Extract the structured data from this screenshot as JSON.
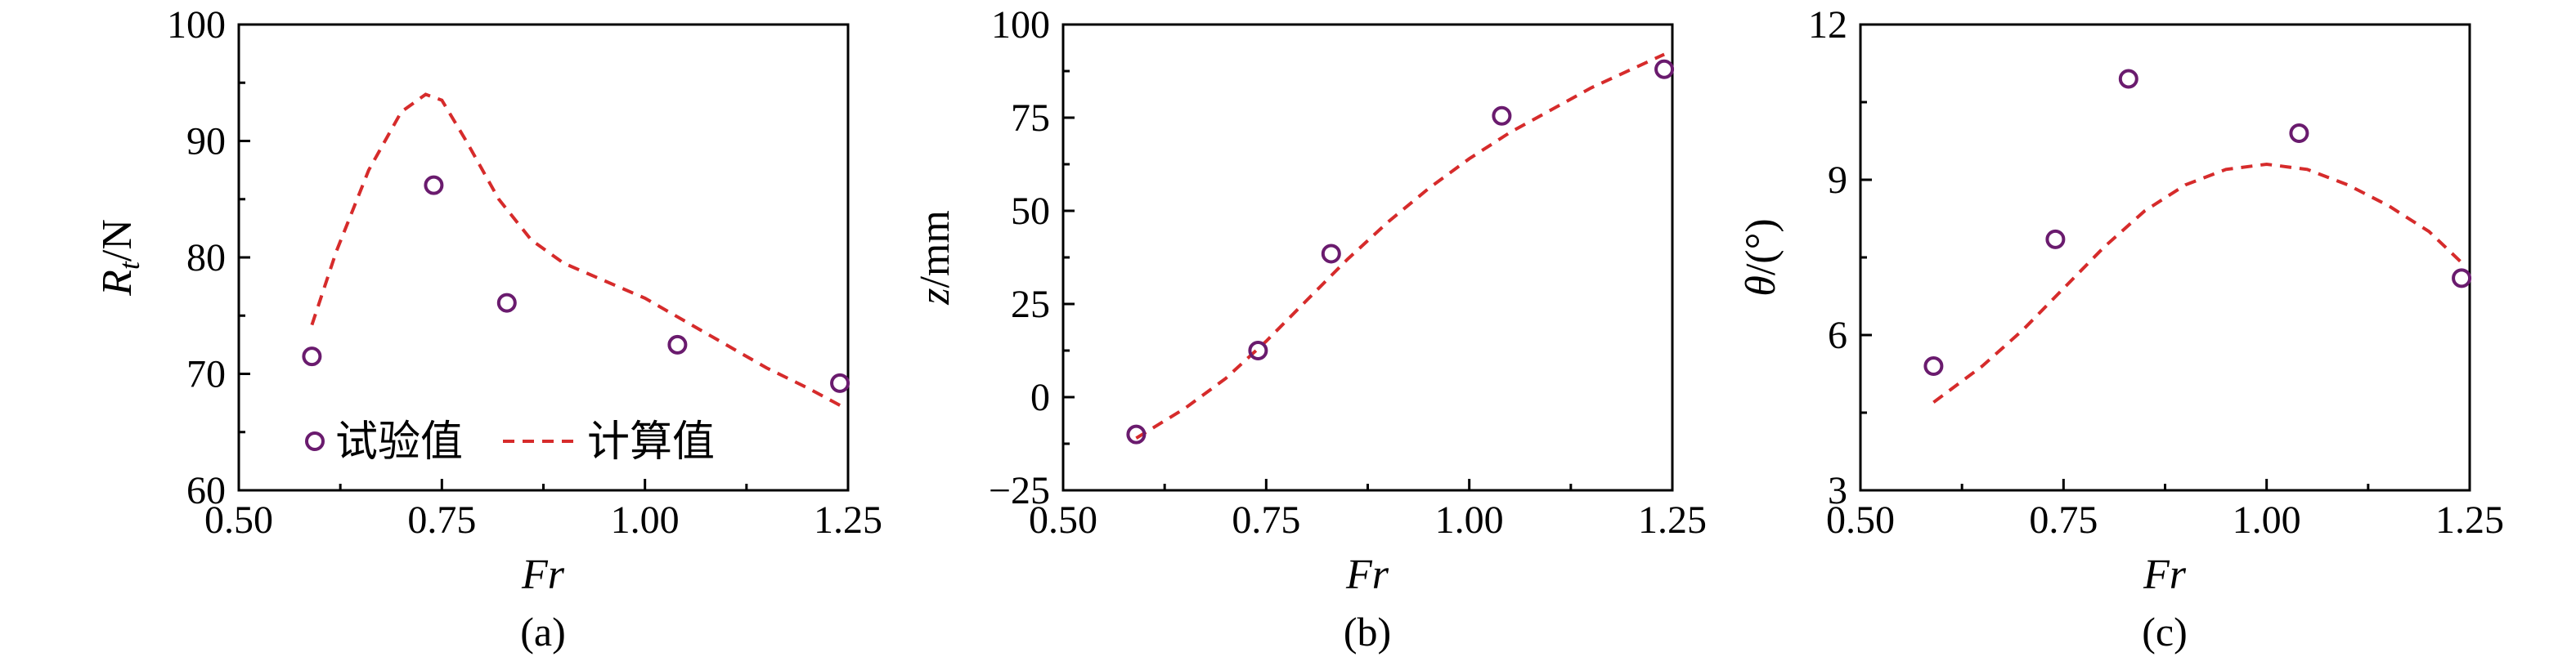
{
  "chart_data": [
    {
      "type": "line",
      "caption": "(a)",
      "xlabel": "Fr",
      "ylabel_main": "R",
      "ylabel_sub": "t",
      "ylabel_unit": "/N",
      "xlim": [
        0.5,
        1.25
      ],
      "ylim": [
        60,
        100
      ],
      "xticks": [
        0.5,
        0.75,
        1.0,
        1.25
      ],
      "xticklabels": [
        "0.50",
        "0.75",
        "1.00",
        "1.25"
      ],
      "yticks": [
        60,
        70,
        80,
        90,
        100
      ],
      "yticklabels": [
        "60",
        "70",
        "80",
        "90",
        "100"
      ],
      "legend": {
        "placement": "bottom",
        "entries": [
          "试验值",
          "计算值"
        ]
      },
      "series": [
        {
          "name": "试验值",
          "kind": "scatter",
          "x": [
            0.59,
            0.74,
            0.83,
            1.04,
            1.24
          ],
          "y": [
            71.5,
            86.2,
            76.1,
            72.5,
            69.2
          ]
        },
        {
          "name": "计算值",
          "kind": "line",
          "x": [
            0.59,
            0.62,
            0.66,
            0.7,
            0.73,
            0.75,
            0.78,
            0.82,
            0.86,
            0.9,
            0.95,
            1.0,
            1.05,
            1.1,
            1.15,
            1.2,
            1.24
          ],
          "y": [
            74.2,
            80.5,
            87.5,
            92.5,
            94.0,
            93.5,
            90.0,
            85.0,
            81.5,
            79.5,
            78.0,
            76.5,
            74.5,
            72.5,
            70.5,
            68.8,
            67.3
          ]
        }
      ]
    },
    {
      "type": "line",
      "caption": "(b)",
      "xlabel": "Fr",
      "ylabel_main": "z",
      "ylabel_sub": "",
      "ylabel_unit": "/mm",
      "xlim": [
        0.5,
        1.25
      ],
      "ylim": [
        -25,
        100
      ],
      "xticks": [
        0.5,
        0.75,
        1.0,
        1.25
      ],
      "xticklabels": [
        "0.50",
        "0.75",
        "1.00",
        "1.25"
      ],
      "yticks": [
        -25,
        0,
        25,
        50,
        75,
        100
      ],
      "yticklabels": [
        "−25",
        "0",
        "25",
        "50",
        "75",
        "100"
      ],
      "series": [
        {
          "name": "试验值",
          "kind": "scatter",
          "x": [
            0.59,
            0.74,
            0.83,
            1.04,
            1.24
          ],
          "y": [
            -10,
            12.5,
            38.5,
            75.5,
            88
          ]
        },
        {
          "name": "计算值",
          "kind": "line",
          "x": [
            0.59,
            0.65,
            0.7,
            0.75,
            0.8,
            0.85,
            0.9,
            0.95,
            1.0,
            1.05,
            1.1,
            1.15,
            1.2,
            1.24
          ],
          "y": [
            -11,
            -3,
            5,
            15,
            26,
            37,
            47,
            56,
            64,
            71,
            77,
            83,
            88,
            92
          ]
        }
      ]
    },
    {
      "type": "line",
      "caption": "(c)",
      "xlabel": "Fr",
      "ylabel_main": "θ",
      "ylabel_sub": "",
      "ylabel_unit": "/(°)",
      "xlim": [
        0.5,
        1.25
      ],
      "ylim": [
        3,
        12
      ],
      "xticks": [
        0.5,
        0.75,
        1.0,
        1.25
      ],
      "xticklabels": [
        "0.50",
        "0.75",
        "1.00",
        "1.25"
      ],
      "yticks": [
        3,
        6,
        9,
        12
      ],
      "yticklabels": [
        "3",
        "6",
        "9",
        "12"
      ],
      "series": [
        {
          "name": "试验值",
          "kind": "scatter",
          "x": [
            0.59,
            0.74,
            0.83,
            1.04,
            1.24
          ],
          "y": [
            5.4,
            7.85,
            10.95,
            9.9,
            7.1
          ]
        },
        {
          "name": "计算值",
          "kind": "line",
          "x": [
            0.59,
            0.65,
            0.7,
            0.75,
            0.8,
            0.85,
            0.9,
            0.95,
            1.0,
            1.05,
            1.1,
            1.15,
            1.2,
            1.24
          ],
          "y": [
            4.7,
            5.4,
            6.1,
            6.9,
            7.7,
            8.4,
            8.9,
            9.2,
            9.3,
            9.2,
            8.9,
            8.5,
            8.0,
            7.4
          ]
        }
      ]
    }
  ]
}
